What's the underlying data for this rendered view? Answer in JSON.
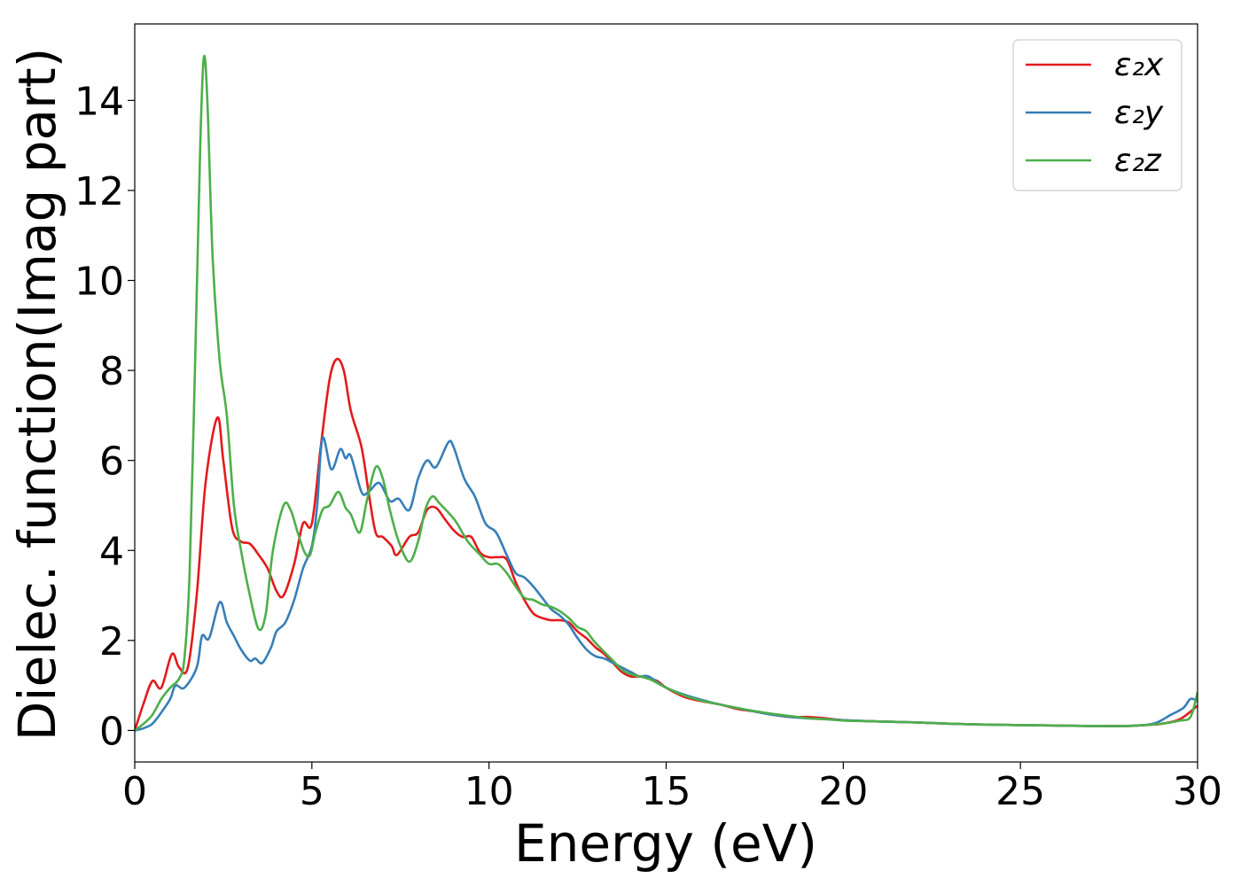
{
  "chart_data": {
    "type": "line",
    "title": "",
    "xlabel": "Energy (eV)",
    "ylabel": "Dielec. function(Imag part)",
    "xlim": [
      0,
      30
    ],
    "ylim": [
      -0.7,
      15.7
    ],
    "xticks": [
      0,
      5,
      10,
      15,
      20,
      25,
      30
    ],
    "yticks": [
      0,
      2,
      4,
      6,
      8,
      10,
      12,
      14
    ],
    "grid": false,
    "legend_position": "top-right",
    "series": [
      {
        "name": "ε₂x",
        "color": "#e41a1c",
        "x": [
          0,
          0.25,
          0.5,
          0.75,
          1.05,
          1.25,
          1.5,
          1.75,
          2.0,
          2.33,
          2.5,
          2.75,
          3.0,
          3.25,
          3.5,
          3.75,
          4.0,
          4.2,
          4.5,
          4.75,
          5.0,
          5.25,
          5.5,
          5.7,
          5.9,
          6.1,
          6.4,
          6.6,
          6.8,
          7.0,
          7.25,
          7.4,
          7.75,
          8.0,
          8.25,
          8.5,
          8.75,
          9.0,
          9.25,
          9.5,
          9.75,
          10,
          10.25,
          10.5,
          10.75,
          11,
          11.25,
          11.5,
          11.75,
          12,
          12.25,
          12.5,
          12.75,
          13,
          13.25,
          13.5,
          13.75,
          14,
          14.25,
          14.5,
          14.75,
          15,
          15.5,
          16,
          16.5,
          17,
          17.5,
          18,
          18.5,
          19,
          19.5,
          20,
          21,
          22,
          23,
          24,
          25,
          26,
          27,
          28,
          28.5,
          29,
          29.5,
          30
        ],
        "y": [
          0,
          0.6,
          1.1,
          0.95,
          1.7,
          1.4,
          1.4,
          3.0,
          5.5,
          6.95,
          6.0,
          4.5,
          4.2,
          4.15,
          3.9,
          3.6,
          3.1,
          3.0,
          3.7,
          4.6,
          4.6,
          6.3,
          7.8,
          8.25,
          8.0,
          7.1,
          6.3,
          5.3,
          4.4,
          4.3,
          4.1,
          3.9,
          4.3,
          4.4,
          4.9,
          4.95,
          4.7,
          4.45,
          4.3,
          4.3,
          3.95,
          3.85,
          3.85,
          3.8,
          3.3,
          2.9,
          2.6,
          2.5,
          2.45,
          2.45,
          2.4,
          2.2,
          2.05,
          1.85,
          1.7,
          1.5,
          1.3,
          1.2,
          1.2,
          1.15,
          1.1,
          0.95,
          0.75,
          0.65,
          0.58,
          0.48,
          0.42,
          0.35,
          0.3,
          0.3,
          0.27,
          0.23,
          0.2,
          0.18,
          0.15,
          0.13,
          0.12,
          0.11,
          0.1,
          0.1,
          0.12,
          0.15,
          0.25,
          0.55
        ]
      },
      {
        "name": "ε₂y",
        "color": "#377eb8",
        "x": [
          0,
          0.25,
          0.5,
          0.75,
          1.0,
          1.15,
          1.4,
          1.75,
          1.9,
          2.1,
          2.4,
          2.6,
          2.8,
          3.0,
          3.25,
          3.4,
          3.6,
          3.85,
          4.0,
          4.25,
          4.5,
          4.75,
          5.0,
          5.15,
          5.3,
          5.55,
          5.8,
          5.95,
          6.1,
          6.4,
          6.6,
          6.9,
          7.2,
          7.45,
          7.75,
          8.0,
          8.25,
          8.5,
          8.85,
          9.0,
          9.3,
          9.6,
          9.9,
          10.2,
          10.5,
          10.75,
          11,
          11.25,
          11.5,
          11.75,
          12,
          12.25,
          12.5,
          12.75,
          13,
          13.25,
          13.5,
          13.75,
          14,
          14.25,
          14.5,
          15,
          15.5,
          16,
          16.5,
          17,
          17.5,
          18,
          18.5,
          19,
          19.5,
          20,
          21,
          22,
          23,
          24,
          25,
          26,
          27,
          28,
          28.75,
          29.25,
          29.6,
          29.8,
          30
        ],
        "y": [
          0,
          0.05,
          0.15,
          0.4,
          0.7,
          1.0,
          0.95,
          1.4,
          2.1,
          2.05,
          2.85,
          2.4,
          2.1,
          1.8,
          1.55,
          1.6,
          1.5,
          1.85,
          2.2,
          2.4,
          2.9,
          3.6,
          4.1,
          5.0,
          6.5,
          5.8,
          6.25,
          6.05,
          6.1,
          5.3,
          5.3,
          5.5,
          5.1,
          5.15,
          4.9,
          5.6,
          6.0,
          5.85,
          6.4,
          6.3,
          5.6,
          5.2,
          4.6,
          4.4,
          3.9,
          3.5,
          3.4,
          3.2,
          2.95,
          2.7,
          2.55,
          2.35,
          2.05,
          1.8,
          1.65,
          1.6,
          1.5,
          1.4,
          1.3,
          1.2,
          1.2,
          0.95,
          0.8,
          0.68,
          0.58,
          0.5,
          0.42,
          0.35,
          0.3,
          0.27,
          0.25,
          0.23,
          0.2,
          0.18,
          0.15,
          0.13,
          0.12,
          0.11,
          0.1,
          0.1,
          0.15,
          0.35,
          0.5,
          0.7,
          0.65
        ]
      },
      {
        "name": "ε₂z",
        "color": "#4daf4a",
        "x": [
          0,
          0.25,
          0.5,
          0.75,
          1.0,
          1.25,
          1.4,
          1.55,
          1.7,
          1.85,
          1.95,
          2.05,
          2.2,
          2.4,
          2.6,
          2.8,
          3.0,
          3.25,
          3.5,
          3.7,
          3.9,
          4.2,
          4.4,
          4.6,
          4.8,
          4.95,
          5.1,
          5.3,
          5.5,
          5.75,
          5.95,
          6.1,
          6.35,
          6.55,
          6.8,
          7.0,
          7.2,
          7.45,
          7.75,
          8.0,
          8.2,
          8.4,
          8.6,
          8.9,
          9.1,
          9.4,
          9.75,
          10.0,
          10.25,
          10.5,
          10.75,
          11,
          11.25,
          11.5,
          11.75,
          12,
          12.25,
          12.5,
          12.75,
          13,
          13.5,
          13.75,
          14,
          14.5,
          15,
          15.5,
          16,
          16.5,
          17,
          17.5,
          18,
          18.5,
          19,
          19.5,
          20,
          21,
          22,
          23,
          24,
          25,
          26,
          27,
          28,
          29,
          29.5,
          29.8,
          30
        ],
        "y": [
          0,
          0.15,
          0.35,
          0.7,
          0.95,
          1.15,
          1.6,
          3.5,
          8,
          13,
          14.95,
          14,
          10.5,
          8.2,
          7.0,
          5.0,
          4.0,
          3.0,
          2.25,
          2.6,
          4.0,
          5.0,
          4.9,
          4.4,
          3.95,
          3.9,
          4.4,
          4.9,
          5.0,
          5.3,
          4.95,
          4.8,
          4.4,
          5.1,
          5.85,
          5.6,
          4.9,
          4.2,
          3.75,
          4.2,
          4.9,
          5.2,
          5.05,
          4.8,
          4.6,
          4.2,
          3.9,
          3.7,
          3.7,
          3.5,
          3.2,
          2.95,
          2.9,
          2.8,
          2.75,
          2.65,
          2.5,
          2.3,
          2.2,
          1.95,
          1.55,
          1.35,
          1.25,
          1.15,
          0.95,
          0.78,
          0.66,
          0.58,
          0.5,
          0.43,
          0.37,
          0.32,
          0.27,
          0.25,
          0.22,
          0.2,
          0.18,
          0.15,
          0.13,
          0.12,
          0.11,
          0.1,
          0.1,
          0.15,
          0.22,
          0.3,
          0.85
        ]
      }
    ]
  }
}
